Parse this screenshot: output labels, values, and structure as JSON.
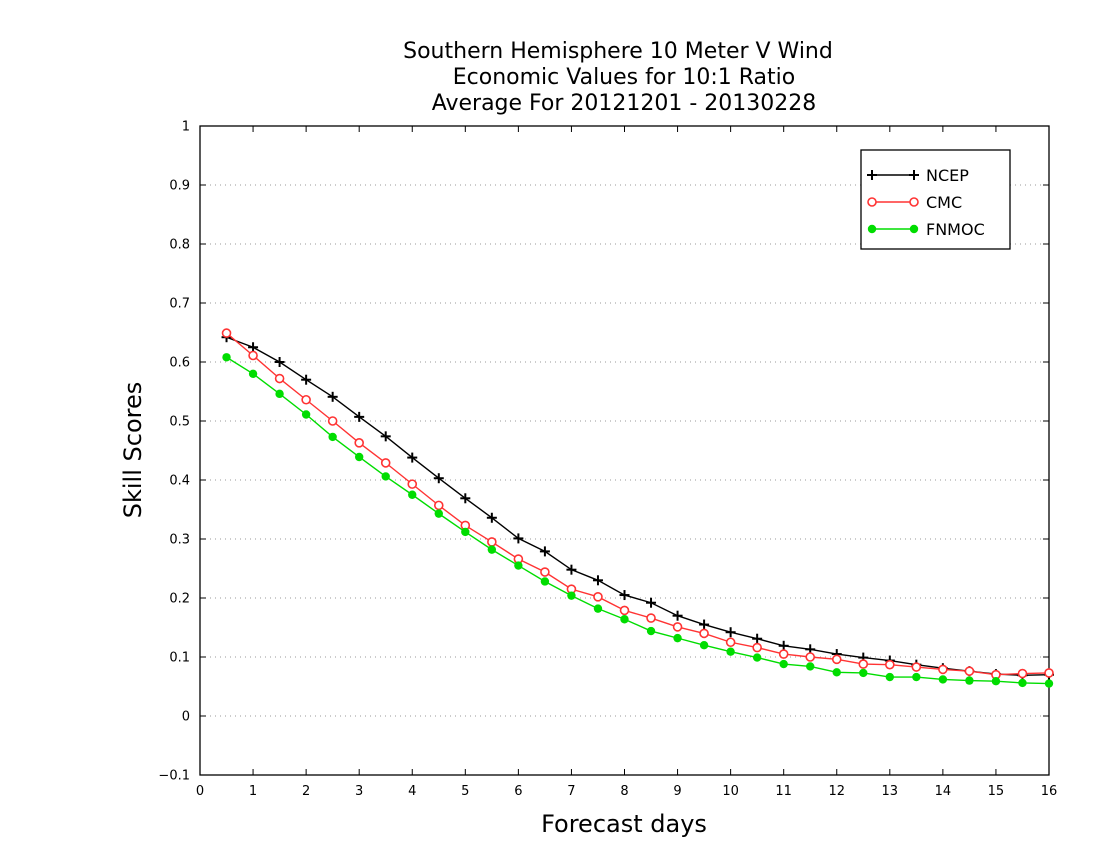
{
  "chart_data": {
    "type": "line",
    "title_lines": [
      "Southern Hemisphere 10 Meter V Wind",
      "Economic Values for 10:1 Ratio",
      "Average For 20121201 - 20130228"
    ],
    "xlabel": "Forecast days",
    "ylabel": "Skill Scores",
    "xlim": [
      0,
      16
    ],
    "ylim": [
      -0.1,
      1
    ],
    "x_ticks": [
      0,
      1,
      2,
      3,
      4,
      5,
      6,
      7,
      8,
      9,
      10,
      11,
      12,
      13,
      14,
      15,
      16
    ],
    "y_ticks": [
      -0.1,
      0,
      0.1,
      0.2,
      0.3,
      0.4,
      0.5,
      0.6,
      0.7,
      0.8,
      0.9,
      1
    ],
    "y_tick_labels": [
      "−0.1",
      "0",
      "0.1",
      "0.2",
      "0.3",
      "0.4",
      "0.5",
      "0.6",
      "0.7",
      "0.8",
      "0.9",
      "1"
    ],
    "grid": "horizontal dotted",
    "legend_position": "top-right",
    "x": [
      0.5,
      1,
      1.5,
      2,
      2.5,
      3,
      3.5,
      4,
      4.5,
      5,
      5.5,
      6,
      6.5,
      7,
      7.5,
      8,
      8.5,
      9,
      9.5,
      10,
      10.5,
      11,
      11.5,
      12,
      12.5,
      13,
      13.5,
      14,
      14.5,
      15,
      15.5,
      16
    ],
    "series": [
      {
        "name": "NCEP",
        "color": "#000000",
        "marker": "plus",
        "values": [
          0.642,
          0.625,
          0.6,
          0.57,
          0.541,
          0.507,
          0.474,
          0.438,
          0.403,
          0.369,
          0.336,
          0.301,
          0.279,
          0.248,
          0.23,
          0.205,
          0.192,
          0.17,
          0.155,
          0.142,
          0.131,
          0.119,
          0.113,
          0.105,
          0.099,
          0.094,
          0.087,
          0.081,
          0.076,
          0.071,
          0.069,
          0.07
        ]
      },
      {
        "name": "CMC",
        "color": "#ff3333",
        "marker": "open-circle",
        "values": [
          0.649,
          0.611,
          0.572,
          0.536,
          0.5,
          0.463,
          0.429,
          0.393,
          0.357,
          0.323,
          0.295,
          0.266,
          0.244,
          0.215,
          0.202,
          0.179,
          0.166,
          0.151,
          0.14,
          0.125,
          0.116,
          0.105,
          0.1,
          0.096,
          0.088,
          0.087,
          0.083,
          0.079,
          0.076,
          0.07,
          0.072,
          0.073
        ]
      },
      {
        "name": "FNMOC",
        "color": "#00dd00",
        "marker": "filled-circle",
        "values": [
          0.608,
          0.58,
          0.546,
          0.511,
          0.473,
          0.439,
          0.406,
          0.375,
          0.343,
          0.312,
          0.282,
          0.255,
          0.228,
          0.204,
          0.182,
          0.164,
          0.144,
          0.132,
          0.12,
          0.109,
          0.099,
          0.088,
          0.084,
          0.074,
          0.073,
          0.066,
          0.066,
          0.062,
          0.06,
          0.059,
          0.056,
          0.055
        ]
      }
    ]
  }
}
